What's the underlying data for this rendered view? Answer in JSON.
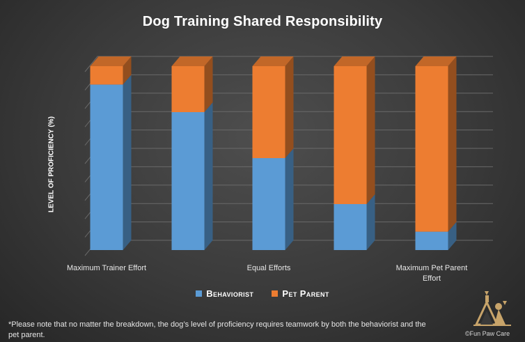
{
  "chart_data": {
    "type": "bar",
    "stacked": true,
    "title": "Dog Training Shared Responsibility",
    "ylabel": "LEVEL OF PROFICIENCY (%)",
    "xlabel": "",
    "ylim": [
      0,
      100
    ],
    "grid": true,
    "legend_position": "bottom",
    "categories": [
      "Maximum Trainer Effort",
      "",
      "Equal Efforts",
      "",
      "Maximum Pet Parent Effort"
    ],
    "series": [
      {
        "name": "Behaviorist",
        "color": "#5b9bd5",
        "values": [
          90,
          75,
          50,
          25,
          10
        ]
      },
      {
        "name": "Pet Parent",
        "color": "#ed7d31",
        "values": [
          10,
          25,
          50,
          75,
          90
        ]
      }
    ]
  },
  "footnote": "*Please note that no matter the breakdown, the dog’s level of proficiency requires teamwork by both the behaviorist and the pet parent.",
  "copyright": "©Fun Paw Care"
}
